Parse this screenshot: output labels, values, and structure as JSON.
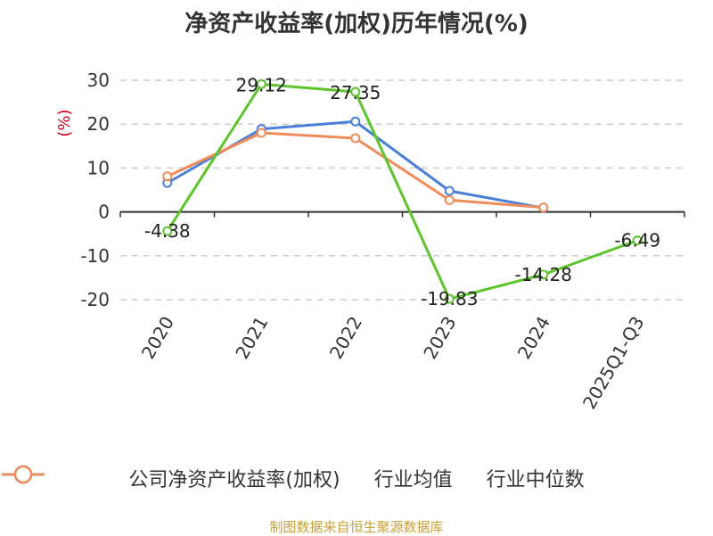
{
  "chart_data": {
    "type": "line",
    "title": "净资产收益率(加权)历年情况(%)",
    "ylabel": "(%)",
    "categories": [
      "2020",
      "2021",
      "2022",
      "2023",
      "2024",
      "2025Q1-Q3"
    ],
    "ylim": [
      -20,
      30
    ],
    "yticks": [
      30,
      20,
      10,
      0,
      -10,
      -20
    ],
    "grid": true,
    "legend_position": "bottom",
    "series": [
      {
        "name": "公司净资产收益率(加权)",
        "color": "#5cc52c",
        "values": [
          -4.38,
          29.12,
          27.35,
          -19.83,
          -14.28,
          -6.49
        ],
        "labels": [
          "-4.38",
          "29.12",
          "27.35",
          "-19.83",
          "-14.28",
          "-6.49"
        ]
      },
      {
        "name": "行业均值",
        "color": "#4a7fd6",
        "values": [
          6.6,
          18.9,
          20.6,
          4.8,
          0.9,
          null
        ]
      },
      {
        "name": "行业中位数",
        "color": "#f28b5a",
        "values": [
          8.1,
          18.0,
          16.8,
          2.7,
          1.0,
          null
        ]
      }
    ]
  },
  "footer": "制图数据来自恒生聚源数据库"
}
